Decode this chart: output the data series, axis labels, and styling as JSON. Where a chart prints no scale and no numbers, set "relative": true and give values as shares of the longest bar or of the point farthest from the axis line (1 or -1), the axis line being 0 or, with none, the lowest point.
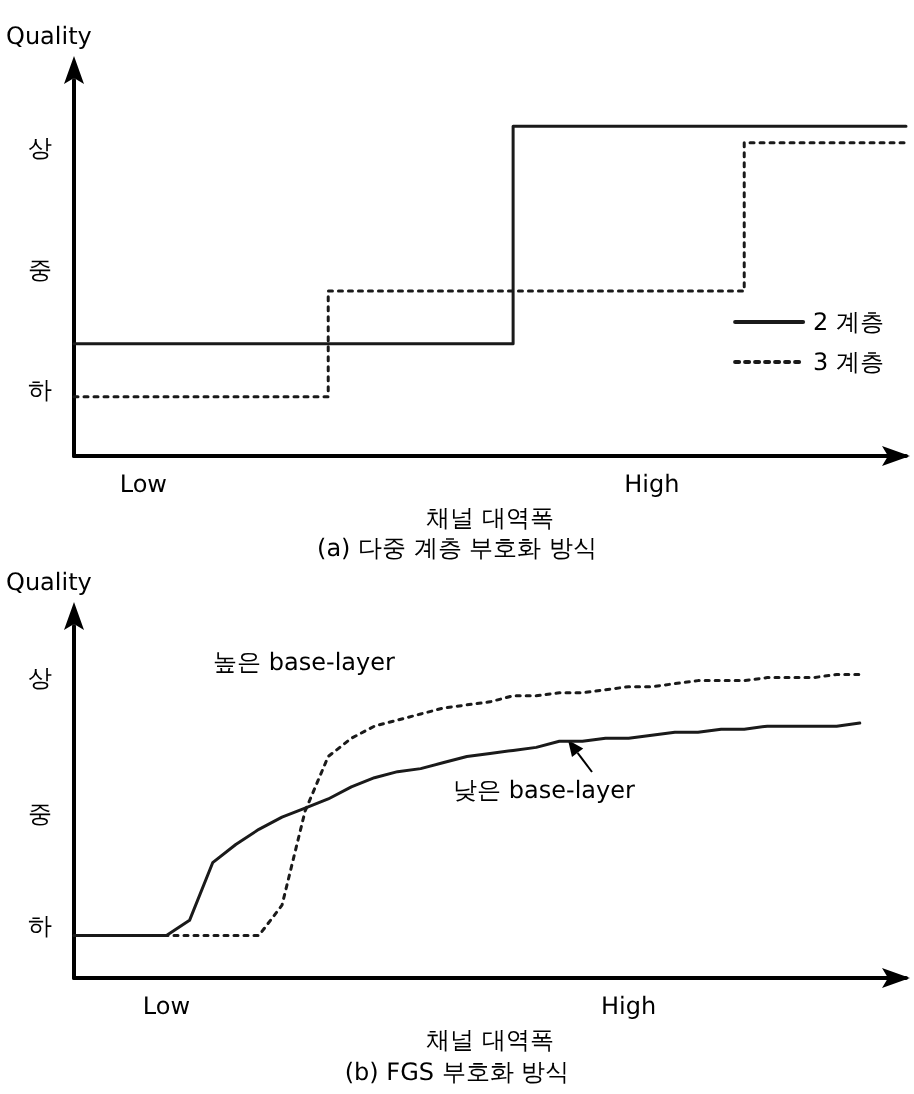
{
  "chart_data": [
    {
      "type": "step",
      "title": "(a) 다중 계층 부호화 방식",
      "xlabel": "채널 대역폭",
      "ylabel": "Quality",
      "relative": true,
      "categories": [
        null,
        null,
        null,
        "Low",
        null,
        null,
        null,
        null,
        null,
        null,
        null,
        null,
        null,
        null,
        null,
        null,
        null,
        null,
        null,
        null,
        null,
        null,
        null,
        null,
        null,
        "High",
        null,
        null,
        null,
        null,
        null,
        null,
        null,
        null,
        null,
        null,
        null
      ],
      "series": [
        {
          "name": "2 계층",
          "color": "#1a1a1a",
          "line_style": "solid",
          "values": [
            0.34,
            0.34,
            0.34,
            0.34,
            0.34,
            0.34,
            0.34,
            0.34,
            0.34,
            0.34,
            0.34,
            0.34,
            0.34,
            0.34,
            0.34,
            0.34,
            0.34,
            0.34,
            0.34,
            1,
            1,
            1,
            1,
            1,
            1,
            1,
            1,
            1,
            1,
            1,
            1,
            1,
            1,
            1,
            1,
            1,
            1
          ]
        },
        {
          "name": "3 계층",
          "color": "#1a1a1a",
          "line_style": "dotted",
          "values": [
            0.18,
            0.18,
            0.18,
            0.18,
            0.18,
            0.18,
            0.18,
            0.18,
            0.18,
            0.18,
            0.18,
            0.5,
            0.5,
            0.5,
            0.5,
            0.5,
            0.5,
            0.5,
            0.5,
            0.5,
            0.5,
            0.5,
            0.5,
            0.5,
            0.5,
            0.5,
            0.5,
            0.5,
            0.5,
            0.95,
            0.95,
            0.95,
            0.95,
            0.95,
            0.95,
            0.95,
            0.95
          ]
        }
      ],
      "annotations": [
        "하",
        "중",
        "상"
      ],
      "legend": "right",
      "grid": false,
      "marker": "none"
    },
    {
      "type": "line",
      "title": "(b) FGS 부호화 방식",
      "xlabel": "채널 대역폭",
      "ylabel": "Quality",
      "relative": true,
      "categories": [
        null,
        null,
        null,
        null,
        "Low",
        null,
        null,
        null,
        null,
        null,
        null,
        null,
        null,
        null,
        null,
        null,
        null,
        null,
        null,
        null,
        null,
        null,
        null,
        null,
        "High",
        null,
        null,
        null,
        null,
        null,
        null,
        null,
        null,
        null,
        null,
        null,
        null
      ],
      "series": [
        {
          "color": "#1a1a1a",
          "line_style": "solid",
          "values": [
            0.14,
            0.14,
            0.14,
            0.14,
            0.14,
            0.19,
            0.38,
            0.44,
            0.49,
            0.53,
            0.56,
            0.59,
            0.63,
            0.66,
            0.68,
            0.69,
            0.71,
            0.73,
            0.74,
            0.75,
            0.76,
            0.78,
            0.78,
            0.79,
            0.79,
            0.8,
            0.81,
            0.81,
            0.82,
            0.82,
            0.83,
            0.83,
            0.83,
            0.83,
            0.84,
            null,
            null
          ]
        },
        {
          "color": "#1a1a1a",
          "line_style": "dotted",
          "values": [
            0.14,
            0.14,
            0.14,
            0.14,
            0.14,
            0.14,
            0.14,
            0.14,
            0.14,
            0.24,
            0.55,
            0.73,
            0.79,
            0.83,
            0.85,
            0.87,
            0.89,
            0.9,
            0.91,
            0.93,
            0.93,
            0.94,
            0.94,
            0.95,
            0.96,
            0.96,
            0.97,
            0.98,
            0.98,
            0.98,
            0.99,
            0.99,
            0.99,
            1,
            1,
            null,
            null
          ]
        }
      ],
      "annotations": [
        "하",
        "중",
        "상",
        "높은 base-layer",
        "낮은 base-layer"
      ],
      "grid": false,
      "marker": "none"
    }
  ]
}
